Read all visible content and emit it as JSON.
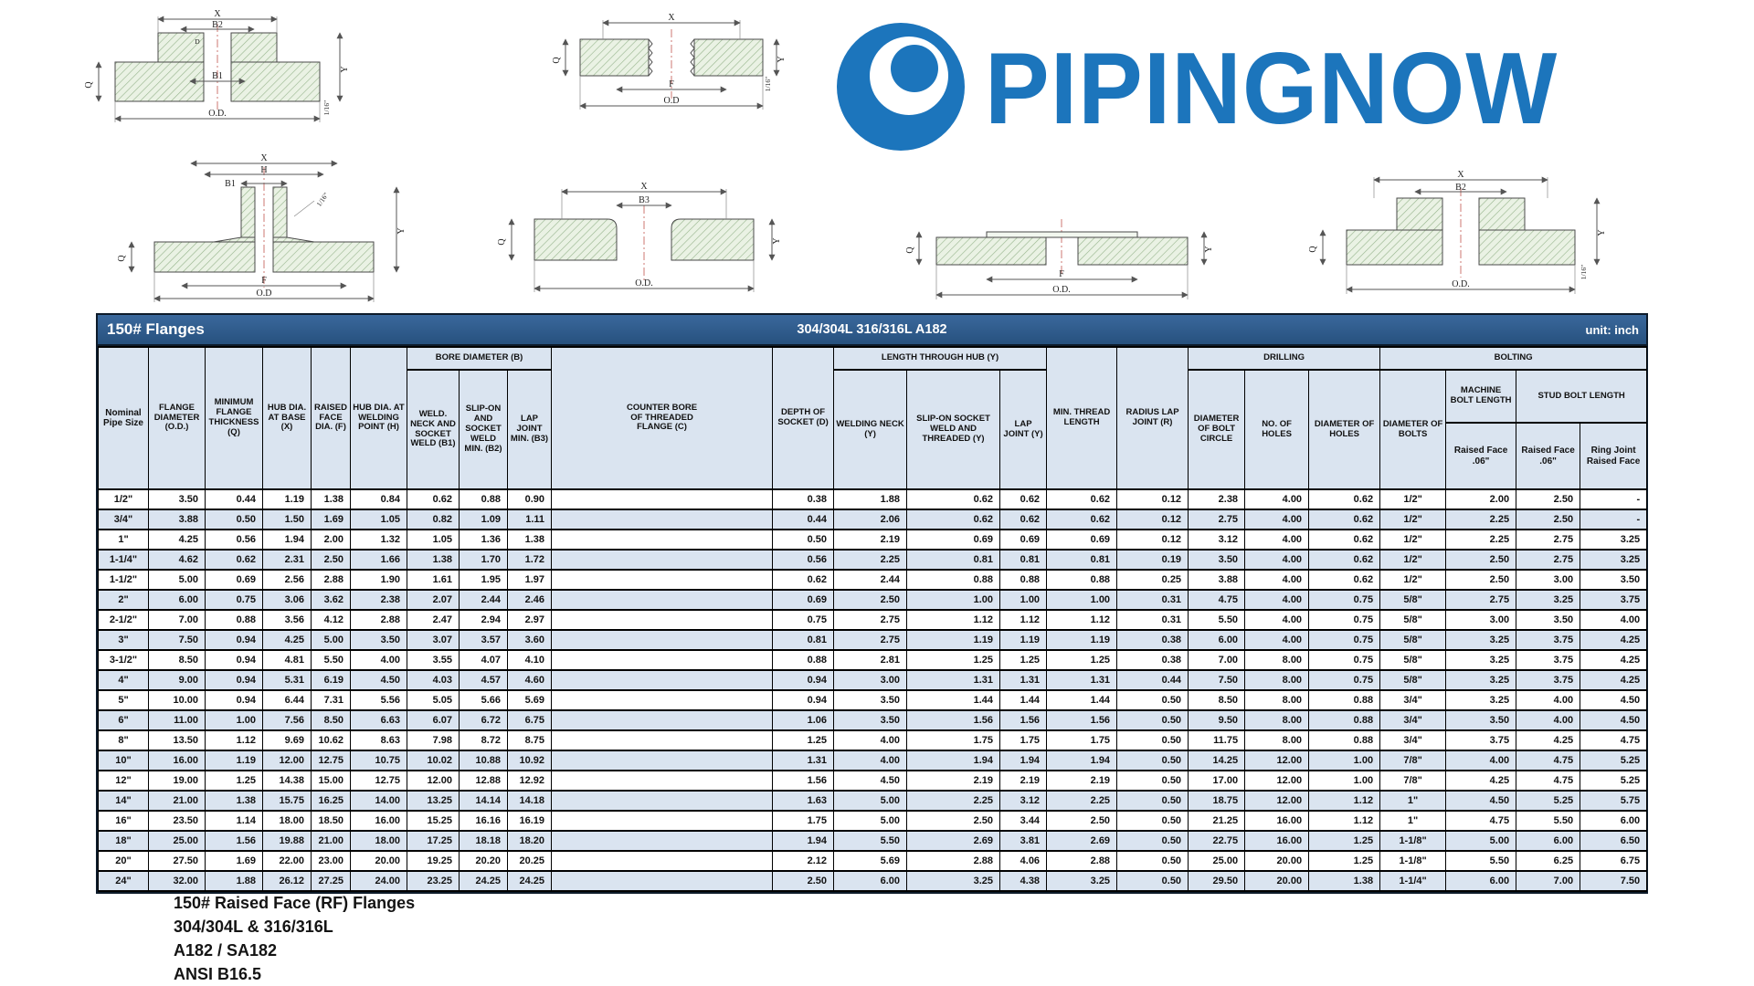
{
  "logo": {
    "text": "PIPINGNOW",
    "color": "#1c75bc"
  },
  "drawings": {
    "d1": {
      "labels": [
        "X",
        "B2",
        "D",
        "Q",
        "B1",
        "Y",
        "1/16\"",
        "O.D."
      ]
    },
    "d2": {
      "labels": [
        "X",
        "Q",
        "F",
        "O.D",
        "Y",
        "1/16\""
      ]
    },
    "d3": {
      "labels": [
        "X",
        "H",
        "B1",
        "1/16\"",
        "Y",
        "Q",
        "F",
        "O.D"
      ]
    },
    "d4": {
      "labels": [
        "X",
        "B3",
        "Q",
        "Y",
        "O.D."
      ]
    },
    "d5": {
      "labels": [
        "Q",
        "F",
        "O.D.",
        "Y"
      ]
    },
    "d6": {
      "labels": [
        "X",
        "B2",
        "Q",
        "Y",
        "1/16\"",
        "O.D."
      ]
    }
  },
  "table": {
    "title_left": "150# Flanges",
    "title_center": "304/304L  316/316L  A182",
    "title_right": "unit: inch",
    "groups": {
      "bore": "BORE DIAMETER (B)",
      "hub": "LENGTH THROUGH HUB (Y)",
      "drilling": "DRILLING",
      "bolting": "BOLTING",
      "machine": "MACHINE BOLT LENGTH",
      "stud": "STUD BOLT LENGTH"
    },
    "cols": {
      "pipe": "Nominal Pipe Size",
      "od": "FLANGE DIAMETER (O.D.)",
      "q": "MINIMUM FLANGE THICKNESS (Q)",
      "x": "HUB DIA. AT BASE (X)",
      "f": "RAISED FACE DIA. (F)",
      "h": "HUB DIA. AT WELDING POINT (H)",
      "b1": "WELD. NECK AND SOCKET WELD (B1)",
      "b2": "SLIP-ON AND SOCKET WELD MIN. (B2)",
      "b3": "LAP JOINT MIN. (B3)",
      "c": "COUNTER BORE OF THREADED FLANGE (C)",
      "d": "DEPTH OF SOCKET (D)",
      "ywn": "WELDING NECK (Y)",
      "yso": "SLIP-ON SOCKET WELD AND THREADED (Y)",
      "ylj": "LAP JOINT (Y)",
      "mt": "MIN. THREAD LENGTH",
      "r": "RADIUS LAP JOINT (R)",
      "bc": "DIAMETER OF BOLT CIRCLE",
      "nh": "NO. OF HOLES",
      "dh": "DIAMETER OF HOLES",
      "db": "DIAMETER OF BOLTS",
      "mbrf": "Raised Face .06\"",
      "sbrf": "Raised Face .06\"",
      "sbrj": "Ring Joint Raised Face"
    },
    "col_keys": [
      "pipe",
      "od",
      "q",
      "x",
      "f",
      "h",
      "b1",
      "b2",
      "b3",
      "c",
      "d",
      "ywn",
      "yso",
      "ylj",
      "mt",
      "r",
      "bc",
      "nh",
      "dh",
      "db",
      "mbrf",
      "sbrf",
      "sbrj"
    ],
    "rows": [
      [
        "1/2\"",
        "3.50",
        "0.44",
        "1.19",
        "1.38",
        "0.84",
        "0.62",
        "0.88",
        "0.90",
        "",
        "0.38",
        "1.88",
        "0.62",
        "0.62",
        "0.62",
        "0.12",
        "2.38",
        "4.00",
        "0.62",
        "1/2\"",
        "2.00",
        "2.50",
        "-"
      ],
      [
        "3/4\"",
        "3.88",
        "0.50",
        "1.50",
        "1.69",
        "1.05",
        "0.82",
        "1.09",
        "1.11",
        "",
        "0.44",
        "2.06",
        "0.62",
        "0.62",
        "0.62",
        "0.12",
        "2.75",
        "4.00",
        "0.62",
        "1/2\"",
        "2.25",
        "2.50",
        "-"
      ],
      [
        "1\"",
        "4.25",
        "0.56",
        "1.94",
        "2.00",
        "1.32",
        "1.05",
        "1.36",
        "1.38",
        "",
        "0.50",
        "2.19",
        "0.69",
        "0.69",
        "0.69",
        "0.12",
        "3.12",
        "4.00",
        "0.62",
        "1/2\"",
        "2.25",
        "2.75",
        "3.25"
      ],
      [
        "1-1/4\"",
        "4.62",
        "0.62",
        "2.31",
        "2.50",
        "1.66",
        "1.38",
        "1.70",
        "1.72",
        "",
        "0.56",
        "2.25",
        "0.81",
        "0.81",
        "0.81",
        "0.19",
        "3.50",
        "4.00",
        "0.62",
        "1/2\"",
        "2.50",
        "2.75",
        "3.25"
      ],
      [
        "1-1/2\"",
        "5.00",
        "0.69",
        "2.56",
        "2.88",
        "1.90",
        "1.61",
        "1.95",
        "1.97",
        "",
        "0.62",
        "2.44",
        "0.88",
        "0.88",
        "0.88",
        "0.25",
        "3.88",
        "4.00",
        "0.62",
        "1/2\"",
        "2.50",
        "3.00",
        "3.50"
      ],
      [
        "2\"",
        "6.00",
        "0.75",
        "3.06",
        "3.62",
        "2.38",
        "2.07",
        "2.44",
        "2.46",
        "",
        "0.69",
        "2.50",
        "1.00",
        "1.00",
        "1.00",
        "0.31",
        "4.75",
        "4.00",
        "0.75",
        "5/8\"",
        "2.75",
        "3.25",
        "3.75"
      ],
      [
        "2-1/2\"",
        "7.00",
        "0.88",
        "3.56",
        "4.12",
        "2.88",
        "2.47",
        "2.94",
        "2.97",
        "",
        "0.75",
        "2.75",
        "1.12",
        "1.12",
        "1.12",
        "0.31",
        "5.50",
        "4.00",
        "0.75",
        "5/8\"",
        "3.00",
        "3.50",
        "4.00"
      ],
      [
        "3\"",
        "7.50",
        "0.94",
        "4.25",
        "5.00",
        "3.50",
        "3.07",
        "3.57",
        "3.60",
        "",
        "0.81",
        "2.75",
        "1.19",
        "1.19",
        "1.19",
        "0.38",
        "6.00",
        "4.00",
        "0.75",
        "5/8\"",
        "3.25",
        "3.75",
        "4.25"
      ],
      [
        "3-1/2\"",
        "8.50",
        "0.94",
        "4.81",
        "5.50",
        "4.00",
        "3.55",
        "4.07",
        "4.10",
        "",
        "0.88",
        "2.81",
        "1.25",
        "1.25",
        "1.25",
        "0.38",
        "7.00",
        "8.00",
        "0.75",
        "5/8\"",
        "3.25",
        "3.75",
        "4.25"
      ],
      [
        "4\"",
        "9.00",
        "0.94",
        "5.31",
        "6.19",
        "4.50",
        "4.03",
        "4.57",
        "4.60",
        "",
        "0.94",
        "3.00",
        "1.31",
        "1.31",
        "1.31",
        "0.44",
        "7.50",
        "8.00",
        "0.75",
        "5/8\"",
        "3.25",
        "3.75",
        "4.25"
      ],
      [
        "5\"",
        "10.00",
        "0.94",
        "6.44",
        "7.31",
        "5.56",
        "5.05",
        "5.66",
        "5.69",
        "",
        "0.94",
        "3.50",
        "1.44",
        "1.44",
        "1.44",
        "0.50",
        "8.50",
        "8.00",
        "0.88",
        "3/4\"",
        "3.25",
        "4.00",
        "4.50"
      ],
      [
        "6\"",
        "11.00",
        "1.00",
        "7.56",
        "8.50",
        "6.63",
        "6.07",
        "6.72",
        "6.75",
        "",
        "1.06",
        "3.50",
        "1.56",
        "1.56",
        "1.56",
        "0.50",
        "9.50",
        "8.00",
        "0.88",
        "3/4\"",
        "3.50",
        "4.00",
        "4.50"
      ],
      [
        "8\"",
        "13.50",
        "1.12",
        "9.69",
        "10.62",
        "8.63",
        "7.98",
        "8.72",
        "8.75",
        "",
        "1.25",
        "4.00",
        "1.75",
        "1.75",
        "1.75",
        "0.50",
        "11.75",
        "8.00",
        "0.88",
        "3/4\"",
        "3.75",
        "4.25",
        "4.75"
      ],
      [
        "10\"",
        "16.00",
        "1.19",
        "12.00",
        "12.75",
        "10.75",
        "10.02",
        "10.88",
        "10.92",
        "",
        "1.31",
        "4.00",
        "1.94",
        "1.94",
        "1.94",
        "0.50",
        "14.25",
        "12.00",
        "1.00",
        "7/8\"",
        "4.00",
        "4.75",
        "5.25"
      ],
      [
        "12\"",
        "19.00",
        "1.25",
        "14.38",
        "15.00",
        "12.75",
        "12.00",
        "12.88",
        "12.92",
        "",
        "1.56",
        "4.50",
        "2.19",
        "2.19",
        "2.19",
        "0.50",
        "17.00",
        "12.00",
        "1.00",
        "7/8\"",
        "4.25",
        "4.75",
        "5.25"
      ],
      [
        "14\"",
        "21.00",
        "1.38",
        "15.75",
        "16.25",
        "14.00",
        "13.25",
        "14.14",
        "14.18",
        "",
        "1.63",
        "5.00",
        "2.25",
        "3.12",
        "2.25",
        "0.50",
        "18.75",
        "12.00",
        "1.12",
        "1\"",
        "4.50",
        "5.25",
        "5.75"
      ],
      [
        "16\"",
        "23.50",
        "1.14",
        "18.00",
        "18.50",
        "16.00",
        "15.25",
        "16.16",
        "16.19",
        "",
        "1.75",
        "5.00",
        "2.50",
        "3.44",
        "2.50",
        "0.50",
        "21.25",
        "16.00",
        "1.12",
        "1\"",
        "4.75",
        "5.50",
        "6.00"
      ],
      [
        "18\"",
        "25.00",
        "1.56",
        "19.88",
        "21.00",
        "18.00",
        "17.25",
        "18.18",
        "18.20",
        "",
        "1.94",
        "5.50",
        "2.69",
        "3.81",
        "2.69",
        "0.50",
        "22.75",
        "16.00",
        "1.25",
        "1-1/8\"",
        "5.00",
        "6.00",
        "6.50"
      ],
      [
        "20\"",
        "27.50",
        "1.69",
        "22.00",
        "23.00",
        "20.00",
        "19.25",
        "20.20",
        "20.25",
        "",
        "2.12",
        "5.69",
        "2.88",
        "4.06",
        "2.88",
        "0.50",
        "25.00",
        "20.00",
        "1.25",
        "1-1/8\"",
        "5.50",
        "6.25",
        "6.75"
      ],
      [
        "24\"",
        "32.00",
        "1.88",
        "26.12",
        "27.25",
        "24.00",
        "23.25",
        "24.25",
        "24.25",
        "",
        "2.50",
        "6.00",
        "3.25",
        "4.38",
        "3.25",
        "0.50",
        "29.50",
        "20.00",
        "1.38",
        "1-1/4\"",
        "6.00",
        "7.00",
        "7.50"
      ]
    ]
  },
  "footer": {
    "lines": [
      "150# Raised Face (RF) Flanges",
      "304/304L & 316/316L",
      "A182 / SA182",
      "ANSI B16.5"
    ]
  }
}
